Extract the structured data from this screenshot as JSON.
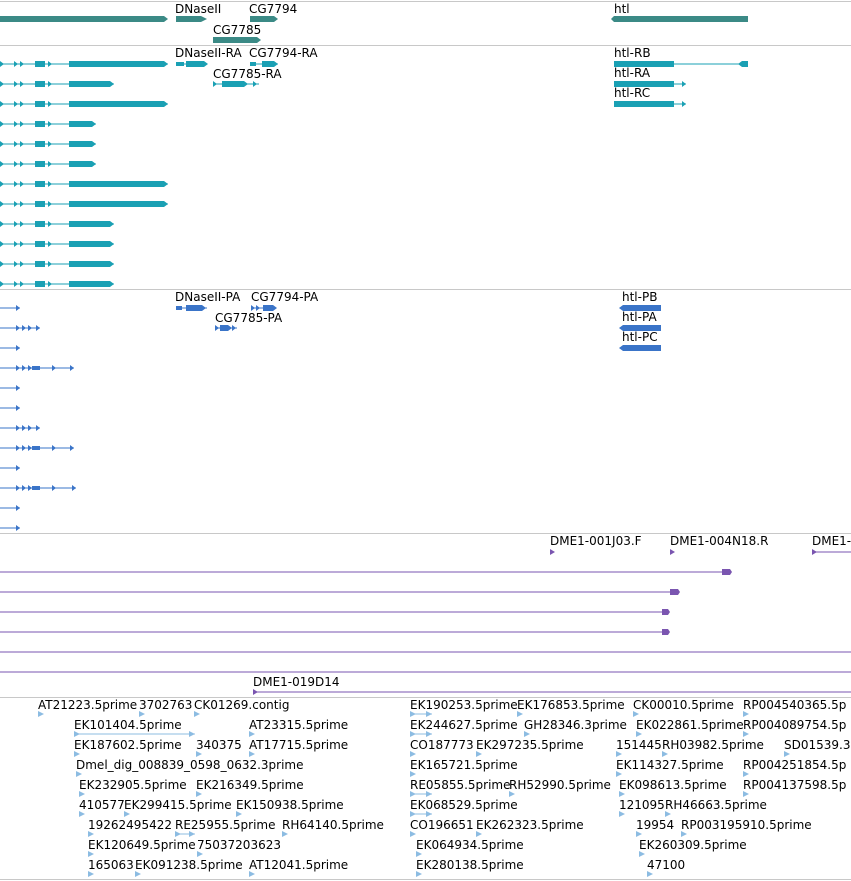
{
  "colors": {
    "gene": "#3b8a86",
    "transcript": "#1aa0b4",
    "protein": "#3a74c8",
    "cdna": "#7a55b0",
    "est": "#8cbce2",
    "separator": "#c8c8c8"
  },
  "genes": [
    {
      "label": "DNaseII"
    },
    {
      "label": "CG7794"
    },
    {
      "label": "CG7785"
    },
    {
      "label": "htl"
    }
  ],
  "transcripts": [
    {
      "label": "DNaseII-RA"
    },
    {
      "label": "CG7794-RA"
    },
    {
      "label": "CG7785-RA"
    },
    {
      "label": "htl-RB"
    },
    {
      "label": "htl-RA"
    },
    {
      "label": "htl-RC"
    }
  ],
  "proteins": [
    {
      "label": "DNaseII-PA"
    },
    {
      "label": "CG7794-PA"
    },
    {
      "label": "CG7785-PA"
    },
    {
      "label": "htl-PB"
    },
    {
      "label": "htl-PA"
    },
    {
      "label": "htl-PC"
    }
  ],
  "cdnas": [
    {
      "label": "DME1-001J03.F"
    },
    {
      "label": "DME1-004N18.R"
    },
    {
      "label": "DME1-"
    },
    {
      "label": "DME1-019D14"
    }
  ],
  "ests": [
    {
      "label": "AT21223.5prime"
    },
    {
      "label": "3702763"
    },
    {
      "label": "CK01269.contig"
    },
    {
      "label": "EK101404.5prime"
    },
    {
      "label": "AT23315.5prime"
    },
    {
      "label": "EK187602.5prime"
    },
    {
      "label": "340375"
    },
    {
      "label": "AT17715.5prime"
    },
    {
      "label": "Dmel_dig_008839_0598_0632.3prime"
    },
    {
      "label": "EK232905.5prime"
    },
    {
      "label": "EK216349.5prime"
    },
    {
      "label": "410577"
    },
    {
      "label": "EK299415.5prime"
    },
    {
      "label": "EK150938.5prime"
    },
    {
      "label": "19262495422"
    },
    {
      "label": "RE25955.5prime"
    },
    {
      "label": "RH64140.5prime"
    },
    {
      "label": "EK120649.5prime"
    },
    {
      "label": "75037203623"
    },
    {
      "label": "165063"
    },
    {
      "label": "EK091238.5prime"
    },
    {
      "label": "AT12041.5prime"
    },
    {
      "label": "EK190253.5prime"
    },
    {
      "label": "EK176853.5prime"
    },
    {
      "label": "EK244627.5prime"
    },
    {
      "label": "GH28346.3prime"
    },
    {
      "label": "CO187773"
    },
    {
      "label": "EK297235.5prime"
    },
    {
      "label": "EK165721.5prime"
    },
    {
      "label": "RE05855.5prime"
    },
    {
      "label": "RH52990.5prime"
    },
    {
      "label": "EK068529.5prime"
    },
    {
      "label": "CO196651"
    },
    {
      "label": "EK262323.5prime"
    },
    {
      "label": "EK064934.5prime"
    },
    {
      "label": "EK280138.5prime"
    },
    {
      "label": "CK00010.5prime"
    },
    {
      "label": "RP004540365.5p"
    },
    {
      "label": "EK022861.5prime"
    },
    {
      "label": "RP004089754.5p"
    },
    {
      "label": "151445"
    },
    {
      "label": "RH03982.5prime"
    },
    {
      "label": "SD01539.3"
    },
    {
      "label": "EK114327.5prime"
    },
    {
      "label": "RP004251854.5p"
    },
    {
      "label": "EK098613.5prime"
    },
    {
      "label": "RP004137598.5p"
    },
    {
      "label": "121095"
    },
    {
      "label": "RH46663.5prime"
    },
    {
      "label": "19954"
    },
    {
      "label": "RP003195910.5prime"
    },
    {
      "label": "EK260309.5prime"
    },
    {
      "label": "47100"
    }
  ]
}
